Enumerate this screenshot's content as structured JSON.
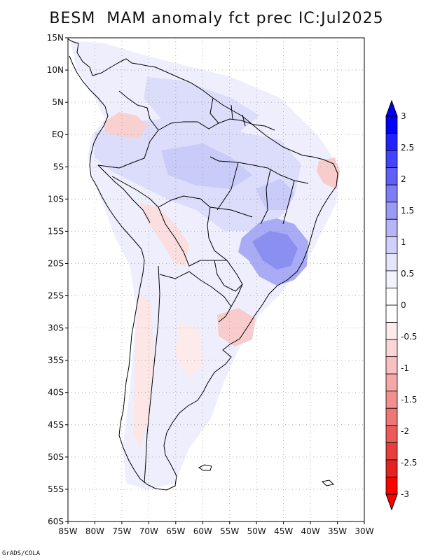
{
  "title": "BESM  MAM anomaly fct prec IC:Jul2025",
  "footer": "GrADS/COLA",
  "map": {
    "lat_labels": [
      "15N",
      "10N",
      "5N",
      "EQ",
      "5S",
      "10S",
      "15S",
      "20S",
      "25S",
      "30S",
      "35S",
      "40S",
      "45S",
      "50S",
      "55S",
      "60S"
    ],
    "lon_labels": [
      "85W",
      "80W",
      "75W",
      "70W",
      "65W",
      "60W",
      "55W",
      "50W",
      "45W",
      "40W",
      "35W",
      "30W"
    ],
    "colors": {
      "land_outline": "#000000",
      "grid": "#9a9a9a",
      "wet_strong": "#8a8ff0",
      "wet_mid": "#b9bcf6",
      "wet_light": "#dcdcfb",
      "wet_faint": "#eeeefd",
      "dry_light": "#fde5e5",
      "dry_mid": "#f8c8c8"
    }
  },
  "colorbar": {
    "labels": [
      "3",
      "2.5",
      "2",
      "1.5",
      "1",
      "0.5",
      "0",
      "-0.5",
      "-1",
      "-1.5",
      "-2",
      "-2.5",
      "-3"
    ],
    "colors": [
      "#0000ff",
      "#2222ff",
      "#4444ff",
      "#5f5ff9",
      "#7d7df7",
      "#9a9af7",
      "#b5b5f7",
      "#d0d0fa",
      "#e5e5fc",
      "#f3f3fe",
      "#ffffff",
      "#ffffff",
      "#fdeaea",
      "#fbd6d6",
      "#f8c0c0",
      "#f6a8a8",
      "#f38f8f",
      "#f07575",
      "#ec5a5a",
      "#e83e3e",
      "#e42222",
      "#ff0000"
    ]
  }
}
